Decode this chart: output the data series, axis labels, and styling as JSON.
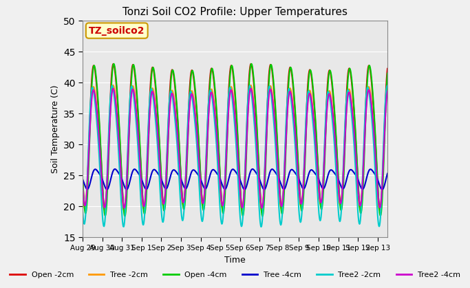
{
  "title": "Tonzi Soil CO2 Profile: Upper Temperatures",
  "xlabel": "Time",
  "ylabel": "Soil Temperature (C)",
  "ylim": [
    15,
    50
  ],
  "n_days": 15.5,
  "n_points": 744,
  "annotation": "TZ_soilco2",
  "annotation_color": "#cc0000",
  "annotation_bg": "#ffffcc",
  "annotation_border": "#cc9900",
  "xtick_labels": [
    "Aug 29",
    "Aug 30",
    "Aug 31",
    "Sep 1",
    "Sep 2",
    "Sep 3",
    "Sep 4",
    "Sep 5",
    "Sep 6",
    "Sep 7",
    "Sep 8",
    "Sep 9",
    "Sep 10",
    "Sep 11",
    "Sep 12",
    "Sep 13"
  ],
  "xtick_positions": [
    0,
    1,
    2,
    3,
    4,
    5,
    6,
    7,
    8,
    9,
    10,
    11,
    12,
    13,
    14,
    15
  ],
  "series": [
    {
      "label": "Open -2cm",
      "color": "#dd0000",
      "lw": 1.5,
      "base": 32.0,
      "amp": 11.0,
      "phase": 0.35,
      "amp2": 1.5,
      "phase2": 0.3
    },
    {
      "label": "Tree -2cm",
      "color": "#ff9900",
      "lw": 1.5,
      "base": 30.0,
      "amp": 9.5,
      "phase": 0.33,
      "amp2": 1.0,
      "phase2": 0.28
    },
    {
      "label": "Open -4cm",
      "color": "#00cc00",
      "lw": 1.5,
      "base": 31.5,
      "amp": 11.5,
      "phase": 0.37,
      "amp2": 1.5,
      "phase2": 0.32
    },
    {
      "label": "Tree -4cm",
      "color": "#0000cc",
      "lw": 1.5,
      "base": 24.5,
      "amp": 1.5,
      "phase": 0.45,
      "amp2": 0.3,
      "phase2": 0.4
    },
    {
      "label": "Tree2 -2cm",
      "color": "#00cccc",
      "lw": 1.5,
      "base": 29.0,
      "amp": 10.5,
      "phase": 0.3,
      "amp2": 1.8,
      "phase2": 0.25
    },
    {
      "label": "Tree2 -4cm",
      "color": "#cc00cc",
      "lw": 1.5,
      "base": 30.0,
      "amp": 9.0,
      "phase": 0.34,
      "amp2": 1.2,
      "phase2": 0.29
    }
  ],
  "bg_color": "#e8e8e8",
  "fig_bg_color": "#f0f0f0"
}
